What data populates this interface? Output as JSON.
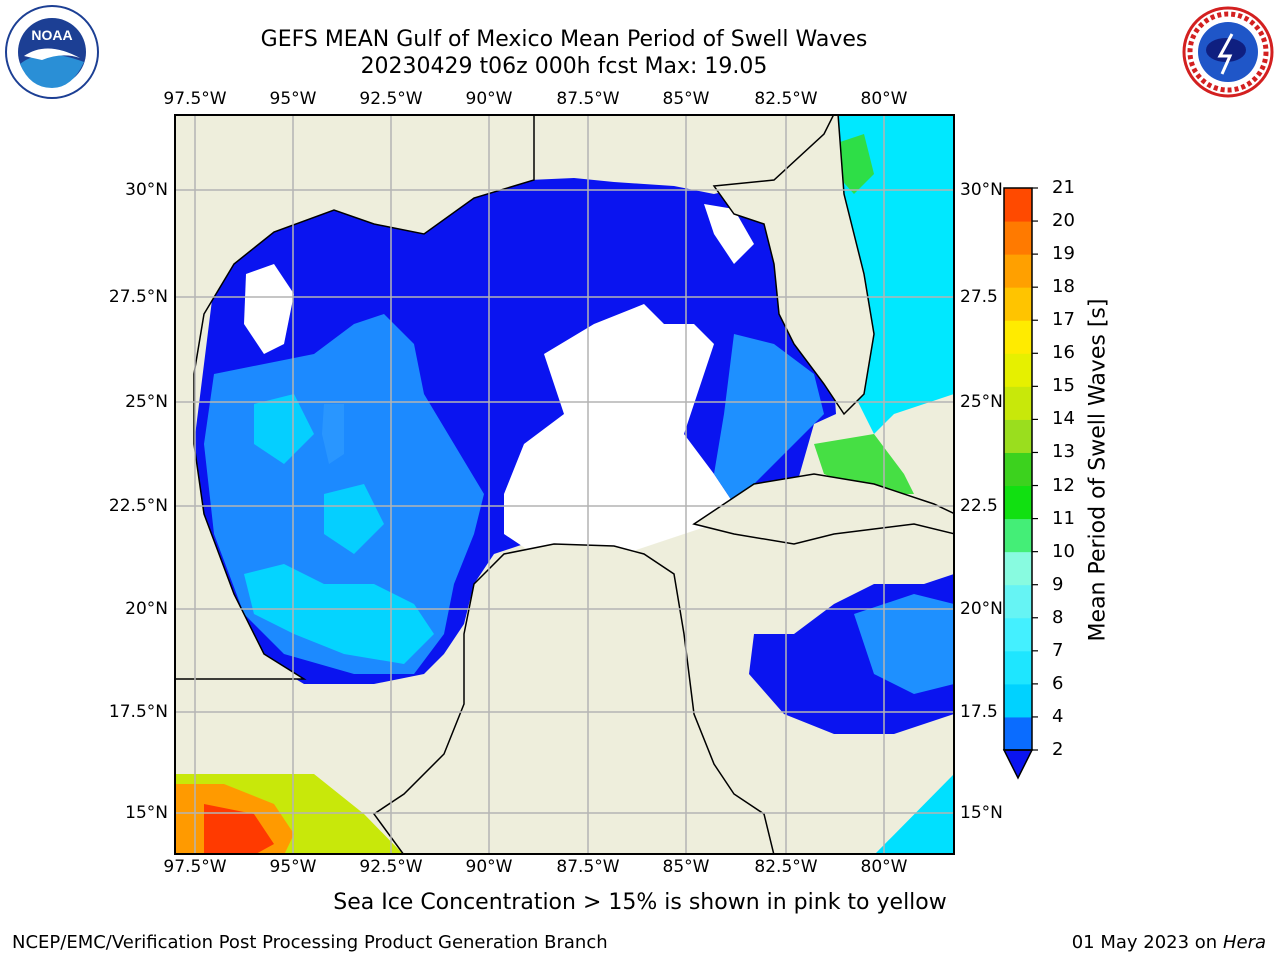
{
  "title_line1": "GEFS MEAN Gulf of Mexico Mean Period of Swell Waves",
  "title_line2": "20230429 t06z 000h fcst   Max: 19.05",
  "lon_labels": [
    "97.5°W",
    "95°W",
    "92.5°W",
    "90°W",
    "87.5°W",
    "85°W",
    "82.5°W",
    "80°W"
  ],
  "lat_labels_left": [
    "30°N",
    "27.5°N",
    "25°N",
    "22.5°N",
    "20°N",
    "17.5°N",
    "15°N"
  ],
  "lat_labels_right": [
    "30°N",
    "27.5",
    "25°N",
    "22.5",
    "20°N",
    "17.5",
    "15°N"
  ],
  "colorbar": {
    "title": "Mean Period of Swell Waves [s]",
    "ticks": [
      "2",
      "4",
      "6",
      "7",
      "8",
      "9",
      "10",
      "11",
      "12",
      "13",
      "14",
      "15",
      "16",
      "17",
      "18",
      "19",
      "20",
      "21"
    ],
    "colors": [
      "#0a6cff",
      "#00d2ff",
      "#1ee6ff",
      "#44f0ff",
      "#66f4f4",
      "#88fbe0",
      "#44ee77",
      "#11e011",
      "#3cd21e",
      "#9ade1e",
      "#c8e80a",
      "#e6f000",
      "#ffeb00",
      "#ffc400",
      "#ffa000",
      "#ff7a00",
      "#ff4a00",
      "#ff2000",
      "#ff0000"
    ]
  },
  "note": "Sea Ice Concentration > 15% is shown in pink to yellow",
  "footer_left": "NCEP/EMC/Verification Post Processing Product Generation Branch",
  "footer_date": "01 May 2023 on",
  "footer_machine": "Hera",
  "logos": {
    "left": "NOAA",
    "right": "NATIONAL WEATHER SERVICE"
  },
  "colors": {
    "land": "#eeeedc",
    "grid": "#b4b4b4",
    "deep_blue": "#0a14f0"
  }
}
